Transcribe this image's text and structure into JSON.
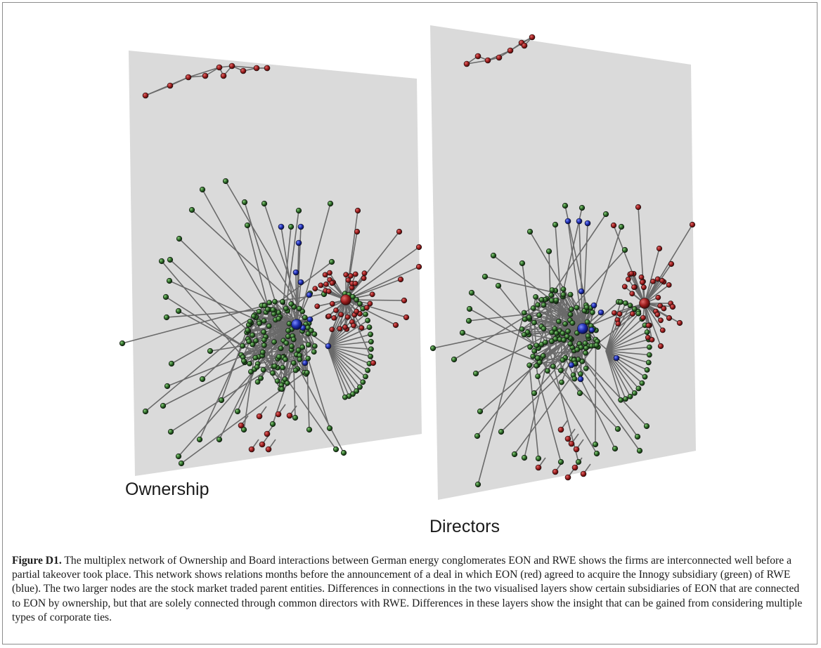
{
  "figure": {
    "layers": [
      {
        "name": "Ownership"
      },
      {
        "name": "Directors"
      }
    ],
    "colors": {
      "eon": "#8b1a1a",
      "innogy": "#2f6b2a",
      "rwe": "#1f2fb0",
      "plane": "#d9d9d9",
      "edge": "#666666"
    }
  },
  "caption": {
    "label": "Figure D1.",
    "text": " The multiplex network of Ownership and Board interactions between German energy conglomerates EON and RWE shows the firms are interconnected well before a partial takeover took place. This network shows relations months before the announcement of a deal in which EON (red) agreed to acquire the Innogy subsidiary (green) of RWE (blue). The two larger nodes are the stock market traded parent entities. Differences in connections in the two visualised layers show certain subsidiaries of EON that are connected to EON by ownership, but that are solely connected through common directors with RWE. Differences in these layers show the insight that can be gained from considering multiple types of corporate ties."
  }
}
